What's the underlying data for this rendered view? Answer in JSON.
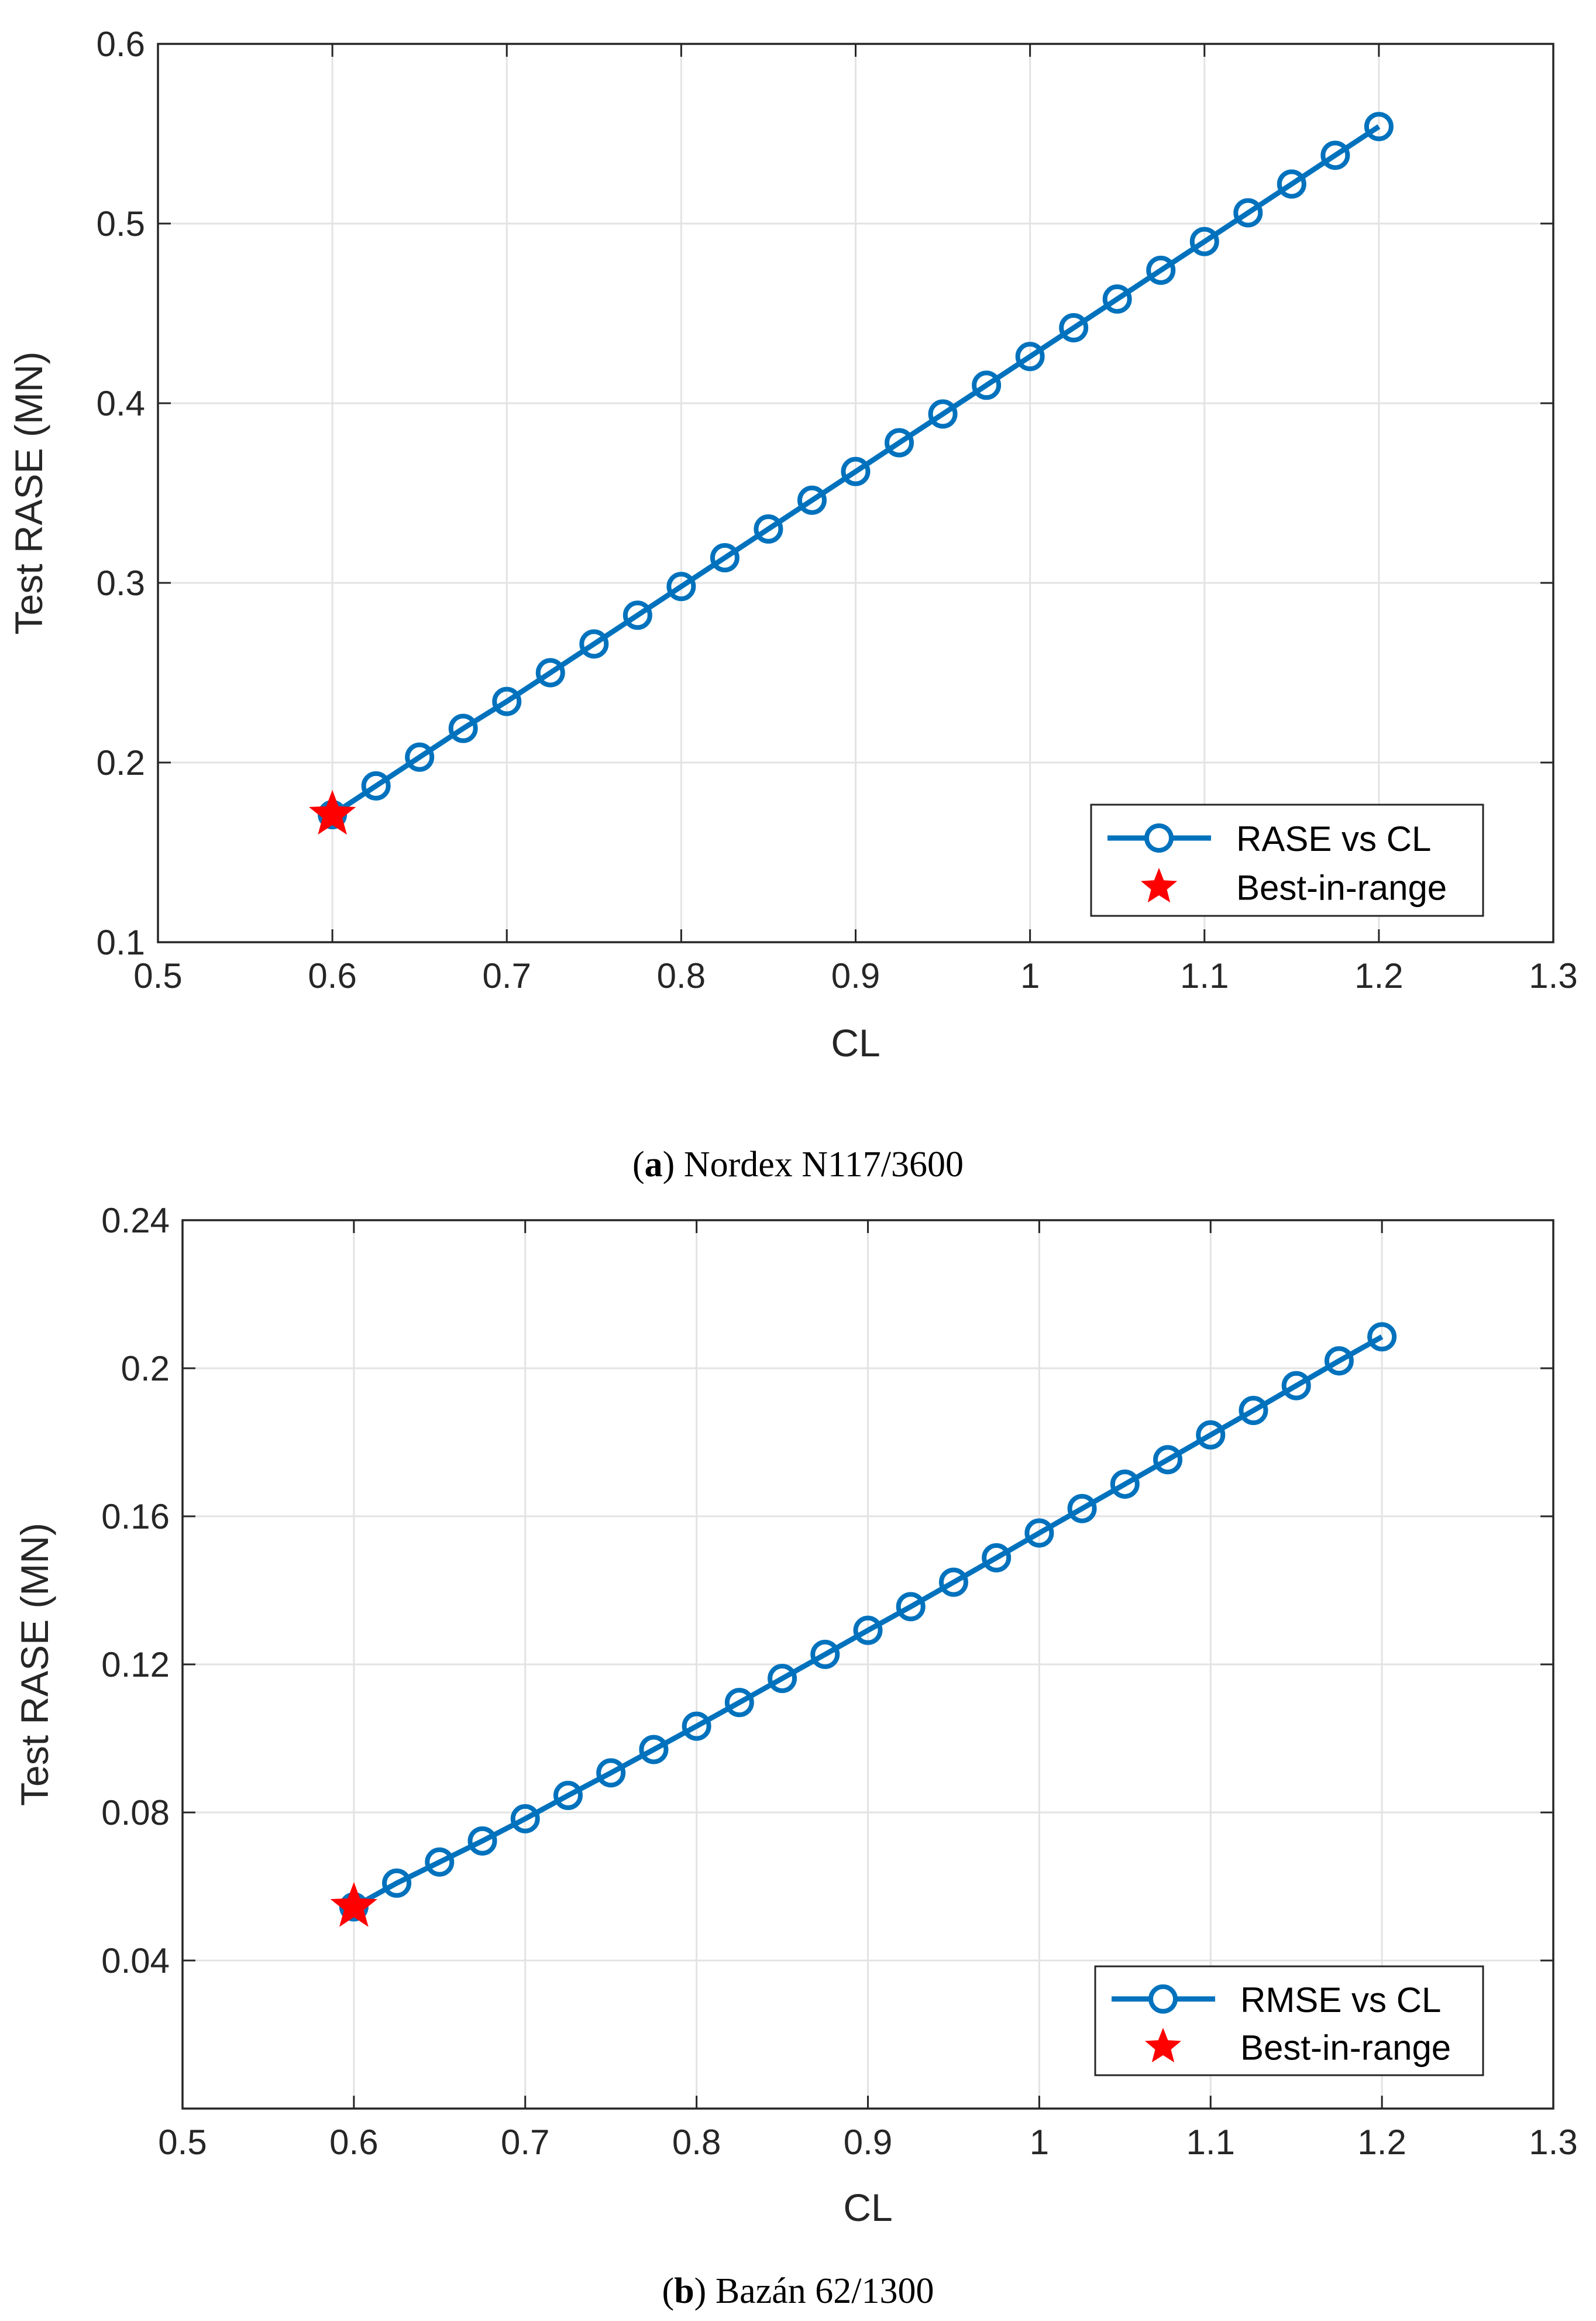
{
  "figure": {
    "captions": [
      {
        "letter": "a",
        "text": " Nordex N117/3600"
      },
      {
        "letter": "b",
        "text": " Bazán 62/1300"
      }
    ]
  },
  "colors": {
    "series": "#0072BD",
    "best": "#FF0000",
    "grid": "#E3E3E3",
    "axis": "#262626"
  },
  "chart_data": [
    {
      "type": "line",
      "panel": "a",
      "xlabel": "CL",
      "ylabel": "Test RASE (MN)",
      "xlim": [
        0.5,
        1.3
      ],
      "ylim": [
        0.1,
        0.6
      ],
      "xticks": [
        0.5,
        0.6,
        0.7,
        0.8,
        0.9,
        1,
        1.1,
        1.2,
        1.3
      ],
      "yticks": [
        0.1,
        0.2,
        0.3,
        0.4,
        0.5,
        0.6
      ],
      "xtick_labels": [
        "0.5",
        "0.6",
        "0.7",
        "0.8",
        "0.9",
        "1",
        "1.1",
        "1.2",
        "1.3"
      ],
      "ytick_labels": [
        "0.1",
        "0.2",
        "0.3",
        "0.4",
        "0.5",
        "0.6"
      ],
      "grid": true,
      "legend_position": "bottom-right",
      "series": [
        {
          "name": "RASE vs CL",
          "x": [
            0.6,
            0.625,
            0.65,
            0.675,
            0.7,
            0.725,
            0.75,
            0.775,
            0.8,
            0.825,
            0.85,
            0.875,
            0.9,
            0.925,
            0.95,
            0.975,
            1.0,
            1.025,
            1.05,
            1.075,
            1.1,
            1.125,
            1.15,
            1.175,
            1.2
          ],
          "y": [
            0.171,
            0.187,
            0.203,
            0.219,
            0.234,
            0.25,
            0.266,
            0.282,
            0.298,
            0.314,
            0.33,
            0.346,
            0.362,
            0.378,
            0.394,
            0.41,
            0.426,
            0.442,
            0.458,
            0.474,
            0.49,
            0.506,
            0.522,
            0.538,
            0.554
          ]
        }
      ],
      "best": {
        "name": "Best-in-range",
        "x": 0.6,
        "y": 0.171
      }
    },
    {
      "type": "line",
      "panel": "b",
      "xlabel": "CL",
      "ylabel": "Test RASE (MN)",
      "xlim": [
        0.5,
        1.3
      ],
      "ylim": [
        0.0,
        0.24
      ],
      "xticks": [
        0.5,
        0.6,
        0.7,
        0.8,
        0.9,
        1,
        1.1,
        1.2,
        1.3
      ],
      "yticks": [
        0.04,
        0.08,
        0.12,
        0.16,
        0.2,
        0.24
      ],
      "xtick_labels": [
        "0.5",
        "0.6",
        "0.7",
        "0.8",
        "0.9",
        "1",
        "1.1",
        "1.2",
        "1.3"
      ],
      "ytick_labels": [
        "0.04",
        "0.08",
        "0.12",
        "0.16",
        "0.2",
        "0.24"
      ],
      "grid": true,
      "legend_position": "bottom-right",
      "series": [
        {
          "name": "RMSE vs CL",
          "x": [
            0.6,
            0.625,
            0.65,
            0.675,
            0.7,
            0.725,
            0.75,
            0.775,
            0.8,
            0.825,
            0.85,
            0.875,
            0.9,
            0.925,
            0.95,
            0.975,
            1.0,
            1.025,
            1.05,
            1.075,
            1.1,
            1.125,
            1.15,
            1.175,
            1.2
          ],
          "y": [
            0.0545,
            0.0609,
            0.0666,
            0.0723,
            0.0783,
            0.0846,
            0.0907,
            0.097,
            0.1033,
            0.1097,
            0.1162,
            0.1227,
            0.1292,
            0.1356,
            0.1422,
            0.1488,
            0.1555,
            0.1621,
            0.1687,
            0.1753,
            0.182,
            0.1886,
            0.1953,
            0.202,
            0.2085
          ]
        }
      ],
      "best": {
        "name": "Best-in-range",
        "x": 0.6,
        "y": 0.0545
      }
    }
  ]
}
